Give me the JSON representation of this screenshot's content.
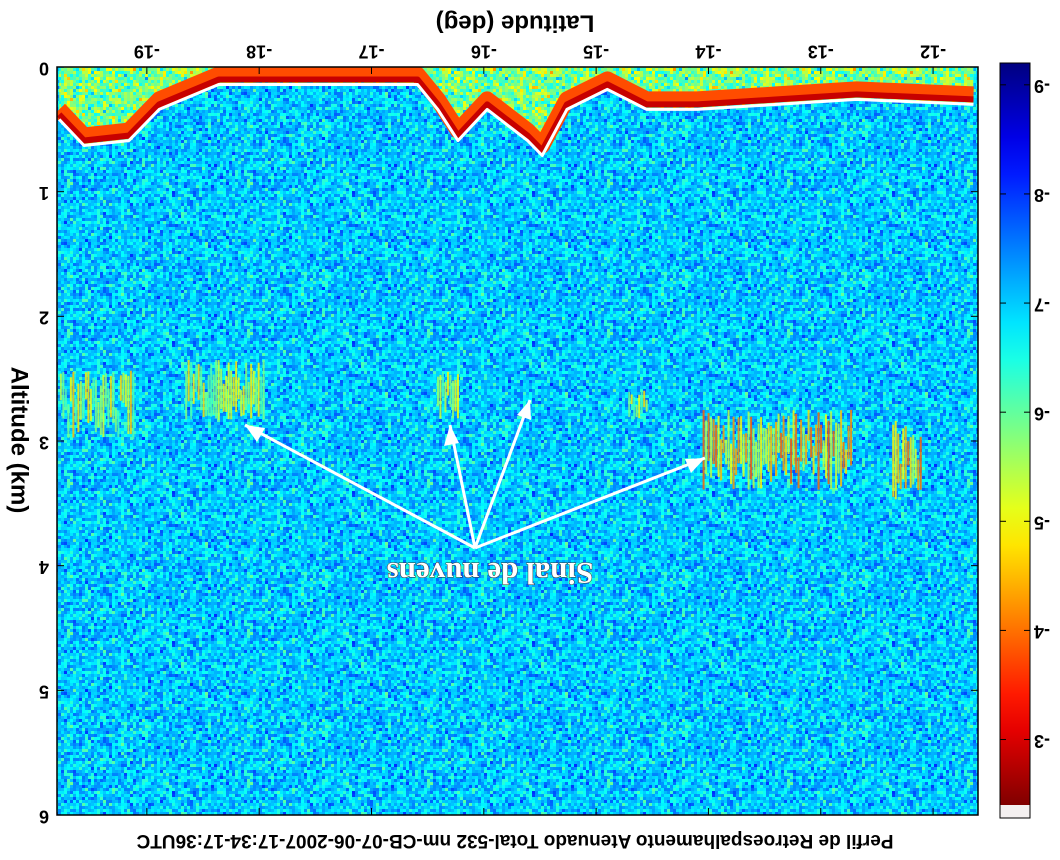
{
  "chart_data": {
    "type": "heatmap",
    "title": "Perfil de Retroespalhamento Atenuado Total-532 nm-CB-07-06-2007-17:34-17:36UTC",
    "xlabel": "Latitude (deg)",
    "ylabel": "Altitude (km)",
    "xlim": [
      -11.6,
      -19.8
    ],
    "xticks": [
      -12,
      -13,
      -14,
      -15,
      -16,
      -17,
      -18,
      -19
    ],
    "ylim": [
      0,
      6
    ],
    "yticks": [
      0,
      1,
      2,
      3,
      4,
      5,
      6
    ],
    "colormap": "jet",
    "clim": [
      -9.2,
      -2.4
    ],
    "cticks": [
      -9,
      -8,
      -7,
      -6,
      -5,
      -4,
      -3
    ],
    "annotation": "Sinal de nuvens",
    "surface": {
      "x": [
        -19.78,
        -19.56,
        -19.16,
        -18.89,
        -18.36,
        -17.65,
        -16.59,
        -16.41,
        -16.23,
        -15.97,
        -15.61,
        -15.48,
        -15.26,
        -14.9,
        -14.55,
        -14.1,
        -13.39,
        -12.68,
        -11.64
      ],
      "values": [
        0.42,
        0.63,
        0.59,
        0.34,
        0.14,
        0.14,
        0.14,
        0.34,
        0.59,
        0.34,
        0.59,
        0.71,
        0.34,
        0.18,
        0.34,
        0.34,
        0.3,
        0.26,
        0.3
      ]
    },
    "clouds": [
      {
        "lat": [
          -19.78,
          -19.12
        ],
        "alt": [
          2.43,
          2.99
        ],
        "value": -4.5
      },
      {
        "lat": [
          -18.67,
          -17.96
        ],
        "alt": [
          2.35,
          2.83
        ],
        "value": -4.5
      },
      {
        "lat": [
          -16.41,
          -16.23
        ],
        "alt": [
          2.43,
          2.83
        ],
        "value": -4.5
      },
      {
        "lat": [
          -14.72,
          -14.55
        ],
        "alt": [
          2.59,
          2.83
        ],
        "value": -4.5
      },
      {
        "lat": [
          -14.06,
          -12.73
        ],
        "alt": [
          2.75,
          3.39
        ],
        "value": -3.8
      },
      {
        "lat": [
          -12.37,
          -12.11
        ],
        "alt": [
          2.83,
          3.47
        ],
        "value": -3.8
      }
    ]
  }
}
